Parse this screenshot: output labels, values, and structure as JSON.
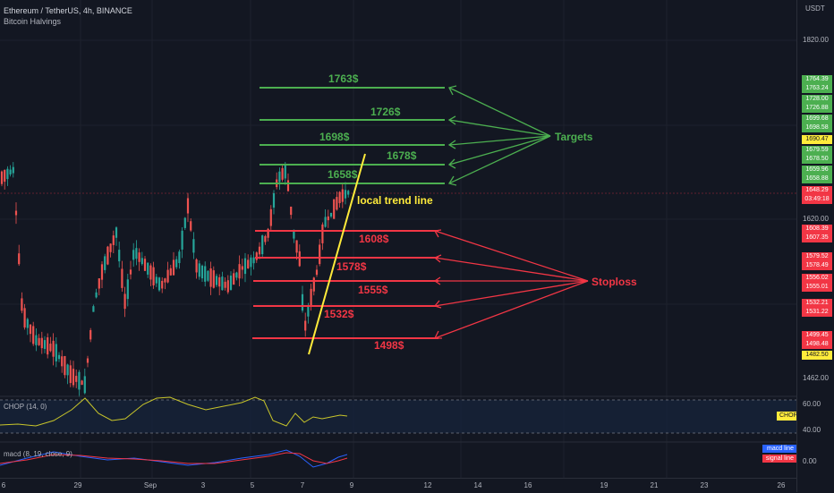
{
  "legend": {
    "symbol_line": "Ethereum / TetherUS, 4h, BINANCE",
    "indicator": "Bitcoin Halvings"
  },
  "axis": {
    "unit": "USDT",
    "ticks": [
      "1820.00",
      "1620.00",
      "1462.00",
      "60.00",
      "40.00",
      "0.00"
    ]
  },
  "price_tags": [
    {
      "text": "1764.39",
      "kind": "green"
    },
    {
      "text": "1763.24",
      "kind": "green"
    },
    {
      "text": "1728.00",
      "kind": "green"
    },
    {
      "text": "1726.88",
      "kind": "green"
    },
    {
      "text": "1699.68",
      "kind": "green"
    },
    {
      "text": "1698.58",
      "kind": "green"
    },
    {
      "text": "1690.47",
      "kind": "yellow"
    },
    {
      "text": "1679.59",
      "kind": "green"
    },
    {
      "text": "1678.50",
      "kind": "green"
    },
    {
      "text": "1659.96",
      "kind": "green"
    },
    {
      "text": "1658.88",
      "kind": "green"
    },
    {
      "text": "1648.29",
      "kind": "red"
    },
    {
      "text": "03:49:18",
      "kind": "red"
    },
    {
      "text": "1608.39",
      "kind": "red"
    },
    {
      "text": "1607.35",
      "kind": "red"
    },
    {
      "text": "1579.52",
      "kind": "red"
    },
    {
      "text": "1578.49",
      "kind": "red"
    },
    {
      "text": "1556.02",
      "kind": "red"
    },
    {
      "text": "1555.01",
      "kind": "red"
    },
    {
      "text": "1532.21",
      "kind": "red"
    },
    {
      "text": "1531.22",
      "kind": "red"
    },
    {
      "text": "1499.45",
      "kind": "red"
    },
    {
      "text": "1498.48",
      "kind": "red"
    },
    {
      "text": "1482.50",
      "kind": "yellow"
    }
  ],
  "annotations": {
    "targets": [
      "1763$",
      "1726$",
      "1698$",
      "1678$",
      "1658$"
    ],
    "targets_label": "Targets",
    "stoploss": [
      "1608$",
      "1578$",
      "1555$",
      "1532$",
      "1498$"
    ],
    "stoploss_label": "Stoploss",
    "trend_label": "local trend line"
  },
  "time_axis": [
    "6",
    "29",
    "Sep",
    "3",
    "5",
    "7",
    "9",
    "12",
    "14",
    "16",
    "19",
    "21",
    "23",
    "26"
  ],
  "chop": {
    "title": "CHOP (14, 0)",
    "badge": "CHOP"
  },
  "macd": {
    "title": "macd (8, 19, close, 9)",
    "macd_label": "macd line",
    "signal_label": "signal line"
  },
  "colors": {
    "green": "#4caf50",
    "red": "#f23645",
    "yellow": "#ffeb3b",
    "bg": "#131722"
  }
}
